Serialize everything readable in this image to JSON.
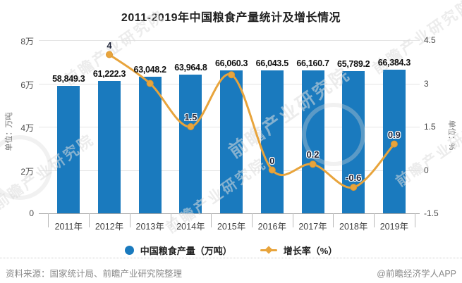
{
  "title": "2011-2019年中国粮食产量统计及增长情况",
  "chart_data": {
    "type": "bar+line",
    "categories": [
      "2011年",
      "2012年",
      "2013年",
      "2014年",
      "2015年",
      "2016年",
      "2017年",
      "2018年",
      "2019年"
    ],
    "series": [
      {
        "name": "中国粮食产量（万吨）",
        "type": "bar",
        "axis": "left",
        "color": "#1a7abe",
        "values": [
          58849.3,
          61222.3,
          63048.2,
          63964.8,
          66060.3,
          66043.5,
          66160.7,
          65789.2,
          66384.3
        ],
        "labels": [
          "58,849.3",
          "61,222.3",
          "63,048.2",
          "63,964.8",
          "66,060.3",
          "66,043.5",
          "66,160.7",
          "65,789.2",
          "66,384.3"
        ]
      },
      {
        "name": "增长率（%）",
        "type": "line",
        "axis": "right",
        "color": "#e8a43c",
        "values": [
          null,
          4,
          3,
          1.5,
          3.3,
          0,
          0.2,
          -0.6,
          0.9
        ],
        "labels": [
          null,
          "4",
          "",
          "1.5",
          "",
          "0",
          "0.2",
          "-0.6",
          "0.9"
        ]
      }
    ],
    "left_axis": {
      "unit_label": "单位：万吨",
      "min": 0,
      "max": 80000,
      "ticks": [
        "8万",
        "6万",
        "4万",
        "2万",
        "0"
      ]
    },
    "right_axis": {
      "unit_label": "单位：%",
      "min": -1.5,
      "max": 4.5,
      "ticks": [
        "4.5",
        "3",
        "1.5",
        "0",
        "-1.5"
      ]
    },
    "grid": true,
    "legend_position": "bottom"
  },
  "watermark": {
    "text": "前瞻产业研究院"
  },
  "footer": {
    "source": "资料来源：国家统计局、前瞻产业研究院整理",
    "brand": "@前瞻经济学人APP"
  }
}
